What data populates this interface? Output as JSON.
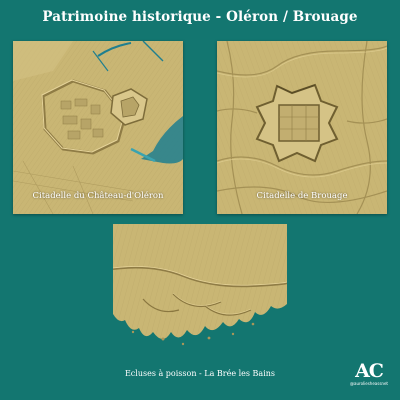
{
  "page": {
    "title": "Patrimoine historique - Oléron / Brouage",
    "background_color": "#137670"
  },
  "panels": [
    {
      "caption": "Citadelle du Château-d'Oléron",
      "theme": "fortress-and-coast"
    },
    {
      "caption": "Citadelle de Brouage",
      "theme": "star-fort-marshland"
    },
    {
      "caption": "",
      "theme": "tidal-fish-weirs"
    }
  ],
  "bottom_caption": "Ecluses à poisson - La Brée les Bains",
  "signature": {
    "mark": "AC",
    "handle": "@auroliesheassnet"
  },
  "colors": {
    "terrain": "#c9b674",
    "terrain_shadow": "#8f7c45",
    "terrain_highlight": "#e6d49a",
    "water": "#137670",
    "water_channel": "#1f7f8f"
  }
}
